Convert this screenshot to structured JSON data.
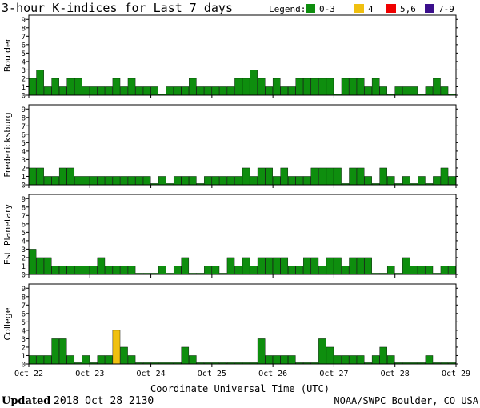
{
  "chart_data": {
    "type": "bar",
    "title": "3-hour K-indices for Last 7 days",
    "legend": {
      "label": "Legend:",
      "entries": [
        {
          "label": "0-3",
          "color": "#0e8e0e"
        },
        {
          "label": "4",
          "color": "#f0c010"
        },
        {
          "label": "5,6",
          "color": "#f00000"
        },
        {
          "label": "7-9",
          "color": "#3b0f8c"
        }
      ],
      "placement": "top-right"
    },
    "xlabel": "Coordinate Universal Time (UTC)",
    "x_tick_labels": [
      "Oct 22",
      "Oct 23",
      "Oct 24",
      "Oct 25",
      "Oct 26",
      "Oct 27",
      "Oct 28",
      "Oct 29"
    ],
    "ylim": [
      0,
      9
    ],
    "y_tick_labels": [
      "0",
      "1",
      "2",
      "3",
      "4",
      "5",
      "6",
      "7",
      "8",
      "9"
    ],
    "grid": false,
    "series": [
      {
        "name": "Boulder",
        "values": [
          2,
          3,
          1,
          2,
          1,
          2,
          2,
          1,
          1,
          1,
          1,
          2,
          1,
          2,
          1,
          1,
          1,
          0,
          1,
          1,
          1,
          2,
          1,
          1,
          1,
          1,
          1,
          2,
          2,
          3,
          2,
          1,
          2,
          1,
          1,
          2,
          2,
          2,
          2,
          2,
          0,
          2,
          2,
          2,
          1,
          2,
          1,
          0,
          1,
          1,
          1,
          0,
          1,
          2,
          1,
          0
        ]
      },
      {
        "name": "Fredericksburg",
        "values": [
          2,
          2,
          1,
          1,
          2,
          2,
          1,
          1,
          1,
          1,
          1,
          1,
          1,
          1,
          1,
          1,
          0,
          1,
          0,
          1,
          1,
          1,
          0,
          1,
          1,
          1,
          1,
          1,
          2,
          1,
          2,
          2,
          1,
          2,
          1,
          1,
          1,
          2,
          2,
          2,
          2,
          0,
          2,
          2,
          1,
          0,
          2,
          1,
          0,
          1,
          0,
          1,
          0,
          1,
          2,
          1,
          0
        ]
      },
      {
        "name": "Est. Planetary",
        "values": [
          3,
          2,
          2,
          1,
          1,
          1,
          1,
          1,
          1,
          2,
          1,
          1,
          1,
          1,
          0,
          0,
          0,
          1,
          0,
          1,
          2,
          0,
          0,
          1,
          1,
          0,
          2,
          1,
          2,
          1,
          2,
          2,
          2,
          2,
          1,
          1,
          2,
          2,
          1,
          2,
          2,
          1,
          2,
          2,
          2,
          0,
          0,
          1,
          0,
          2,
          1,
          1,
          1,
          0,
          1,
          1
        ]
      },
      {
        "name": "College",
        "values": [
          1,
          1,
          1,
          3,
          3,
          1,
          0,
          1,
          0,
          1,
          1,
          4,
          2,
          1,
          0,
          0,
          0,
          0,
          0,
          0,
          2,
          1,
          0,
          0,
          0,
          0,
          0,
          0,
          0,
          0,
          3,
          1,
          1,
          1,
          1,
          0,
          0,
          0,
          3,
          2,
          1,
          1,
          1,
          1,
          0,
          1,
          2,
          1,
          0,
          0,
          0,
          0,
          1,
          0,
          0,
          0
        ]
      }
    ]
  },
  "footer": {
    "updated_label": "Updated",
    "updated_value": "2018 Oct 28 2130",
    "credit": "NOAA/SWPC Boulder, CO USA"
  }
}
